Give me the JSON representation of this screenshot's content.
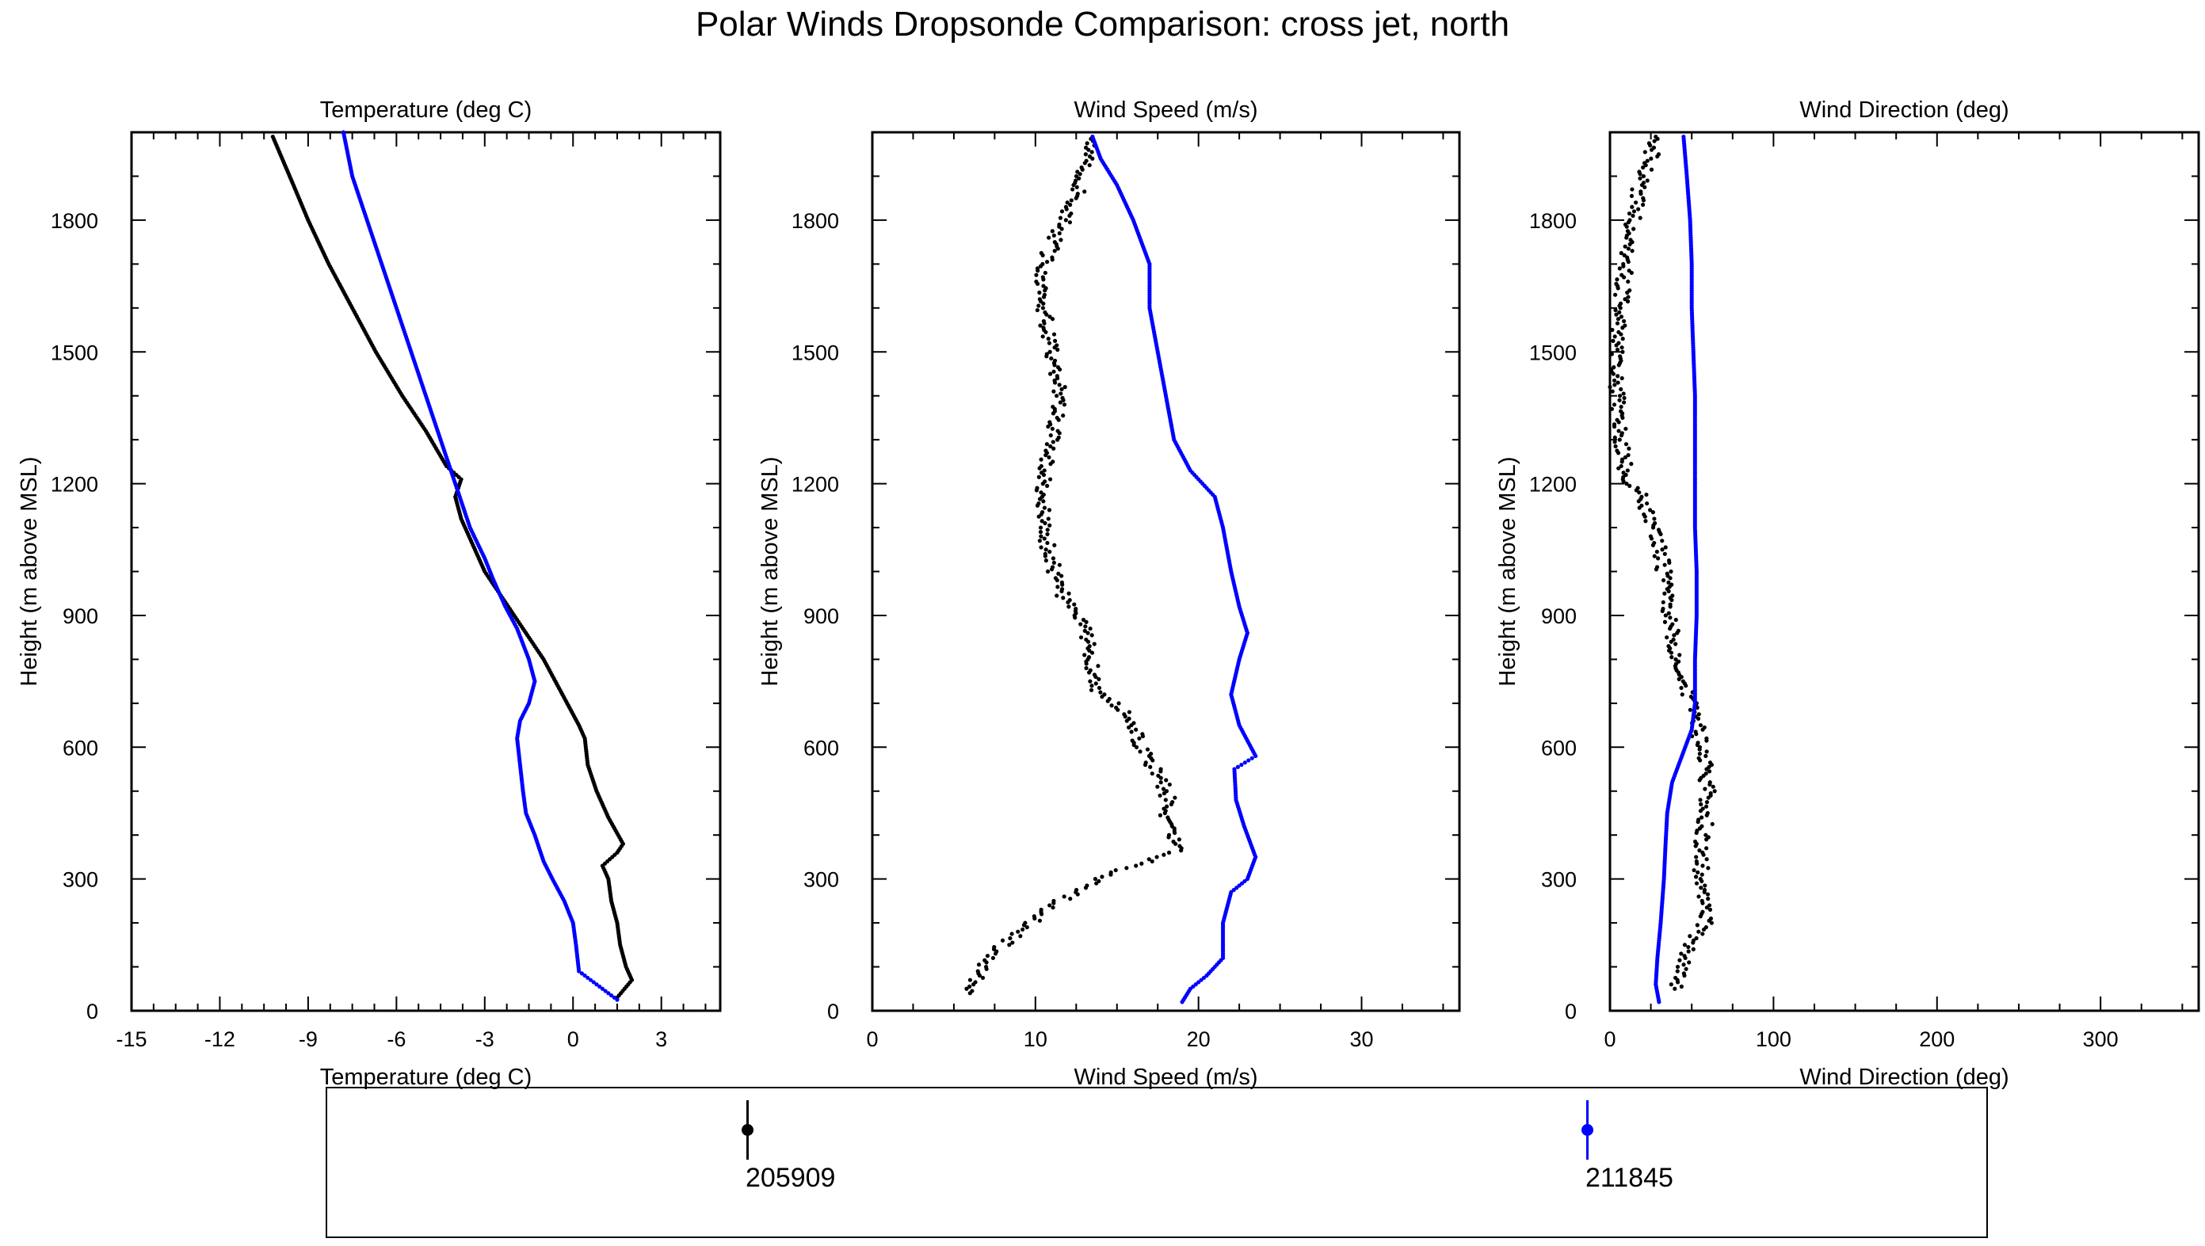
{
  "figure_title": "Polar Winds Dropsonde Comparison: cross jet, north",
  "colors": {
    "series_205909": "#000000",
    "series_211845": "#0000ff",
    "axes": "#000000"
  },
  "legend": [
    {
      "label": "205909",
      "color": "#000000"
    },
    {
      "label": "211845",
      "color": "#0000ff"
    }
  ],
  "chart_data": [
    {
      "type": "scatter",
      "title": "Temperature (deg C)",
      "xlabel": "Temperature (deg C)",
      "ylabel": "Height (m above MSL)",
      "xlim": [
        -15,
        5
      ],
      "ylim": [
        0,
        2000
      ],
      "xticks": [
        -15,
        -12,
        -9,
        -6,
        -3,
        0,
        3
      ],
      "yticks": [
        0,
        300,
        600,
        900,
        1200,
        1500,
        1800
      ],
      "grid": false,
      "series": [
        {
          "name": "205909",
          "color": "#000000",
          "points": [
            [
              1.5,
              30
            ],
            [
              2.0,
              70
            ],
            [
              1.8,
              100
            ],
            [
              1.6,
              150
            ],
            [
              1.5,
              200
            ],
            [
              1.3,
              250
            ],
            [
              1.2,
              300
            ],
            [
              1.0,
              330
            ],
            [
              1.5,
              360
            ],
            [
              1.7,
              380
            ],
            [
              1.2,
              440
            ],
            [
              0.8,
              500
            ],
            [
              0.5,
              560
            ],
            [
              0.4,
              620
            ],
            [
              0.2,
              650
            ],
            [
              -0.2,
              700
            ],
            [
              -0.6,
              750
            ],
            [
              -1.0,
              800
            ],
            [
              -1.5,
              850
            ],
            [
              -2.0,
              900
            ],
            [
              -2.5,
              950
            ],
            [
              -3.0,
              1000
            ],
            [
              -3.4,
              1060
            ],
            [
              -3.8,
              1120
            ],
            [
              -4.0,
              1170
            ],
            [
              -3.8,
              1210
            ],
            [
              -4.3,
              1240
            ],
            [
              -5.0,
              1320
            ],
            [
              -5.8,
              1400
            ],
            [
              -6.7,
              1500
            ],
            [
              -7.5,
              1600
            ],
            [
              -8.3,
              1700
            ],
            [
              -9.0,
              1800
            ],
            [
              -9.5,
              1880
            ],
            [
              -10.2,
              1990
            ]
          ]
        },
        {
          "name": "211845",
          "color": "#0000ff",
          "points": [
            [
              1.5,
              25
            ],
            [
              0.8,
              60
            ],
            [
              0.2,
              90
            ],
            [
              0.1,
              150
            ],
            [
              0.0,
              200
            ],
            [
              -0.3,
              250
            ],
            [
              -0.7,
              300
            ],
            [
              -1.0,
              340
            ],
            [
              -1.3,
              400
            ],
            [
              -1.6,
              450
            ],
            [
              -1.7,
              500
            ],
            [
              -1.8,
              560
            ],
            [
              -1.9,
              620
            ],
            [
              -1.8,
              660
            ],
            [
              -1.5,
              700
            ],
            [
              -1.3,
              750
            ],
            [
              -1.5,
              800
            ],
            [
              -1.9,
              870
            ],
            [
              -2.3,
              920
            ],
            [
              -2.7,
              980
            ],
            [
              -3.0,
              1030
            ],
            [
              -3.5,
              1100
            ],
            [
              -4.0,
              1200
            ],
            [
              -4.5,
              1300
            ],
            [
              -5.0,
              1400
            ],
            [
              -5.5,
              1500
            ],
            [
              -6.0,
              1600
            ],
            [
              -6.5,
              1700
            ],
            [
              -7.0,
              1800
            ],
            [
              -7.5,
              1900
            ],
            [
              -7.8,
              2000
            ]
          ]
        }
      ]
    },
    {
      "type": "scatter",
      "title": "Wind Speed (m/s)",
      "xlabel": "Wind Speed (m/s)",
      "ylabel": "Height (m above MSL)",
      "xlim": [
        0,
        36
      ],
      "ylim": [
        0,
        2000
      ],
      "xticks": [
        0,
        10,
        20,
        30
      ],
      "yticks": [
        0,
        300,
        600,
        900,
        1200,
        1500,
        1800
      ],
      "grid": false,
      "series": [
        {
          "name": "205909",
          "color": "#000000",
          "points": [
            [
              6.0,
              40
            ],
            [
              6.5,
              80
            ],
            [
              7.0,
              110
            ],
            [
              8.0,
              150
            ],
            [
              9.0,
              180
            ],
            [
              10.0,
              210
            ],
            [
              11.0,
              240
            ],
            [
              12.5,
              270
            ],
            [
              14.0,
              300
            ],
            [
              16.0,
              330
            ],
            [
              19.0,
              370
            ],
            [
              18.0,
              420
            ],
            [
              18.2,
              480
            ],
            [
              17.5,
              540
            ],
            [
              16.5,
              600
            ],
            [
              16.0,
              660
            ],
            [
              15.0,
              700
            ],
            [
              13.5,
              740
            ],
            [
              13.5,
              800
            ],
            [
              13.0,
              870
            ],
            [
              12.0,
              920
            ],
            [
              11.5,
              960
            ],
            [
              11.0,
              1020
            ],
            [
              10.5,
              1100
            ],
            [
              10.5,
              1200
            ],
            [
              11.0,
              1300
            ],
            [
              11.5,
              1400
            ],
            [
              11.0,
              1500
            ],
            [
              10.5,
              1600
            ],
            [
              10.5,
              1700
            ],
            [
              11.5,
              1780
            ],
            [
              12.5,
              1850
            ],
            [
              13.0,
              1920
            ],
            [
              13.5,
              1990
            ]
          ]
        },
        {
          "name": "211845",
          "color": "#0000ff",
          "points": [
            [
              19.0,
              20
            ],
            [
              19.5,
              50
            ],
            [
              20.5,
              80
            ],
            [
              21.5,
              120
            ],
            [
              21.5,
              200
            ],
            [
              22.0,
              270
            ],
            [
              23.0,
              300
            ],
            [
              23.5,
              350
            ],
            [
              22.8,
              420
            ],
            [
              22.3,
              480
            ],
            [
              22.2,
              550
            ],
            [
              23.5,
              580
            ],
            [
              22.5,
              650
            ],
            [
              22.0,
              720
            ],
            [
              22.5,
              800
            ],
            [
              23.0,
              860
            ],
            [
              22.5,
              920
            ],
            [
              22.0,
              1000
            ],
            [
              21.5,
              1100
            ],
            [
              21.0,
              1170
            ],
            [
              19.5,
              1230
            ],
            [
              18.5,
              1300
            ],
            [
              18.0,
              1400
            ],
            [
              17.5,
              1500
            ],
            [
              17.0,
              1600
            ],
            [
              17.0,
              1700
            ],
            [
              16.0,
              1800
            ],
            [
              15.0,
              1880
            ],
            [
              14.0,
              1940
            ],
            [
              13.5,
              1990
            ]
          ]
        }
      ]
    },
    {
      "type": "scatter",
      "title": "Wind Direction (deg)",
      "xlabel": "Wind Direction (deg)",
      "ylabel": "Height (m above MSL)",
      "xlim": [
        0,
        360
      ],
      "ylim": [
        0,
        2000
      ],
      "xticks": [
        0,
        100,
        200,
        300
      ],
      "yticks": [
        0,
        300,
        600,
        900,
        1200,
        1500,
        1800
      ],
      "grid": false,
      "series": [
        {
          "name": "205909",
          "color": "#000000",
          "points": [
            [
              40,
              50
            ],
            [
              45,
              100
            ],
            [
              50,
              150
            ],
            [
              58,
              200
            ],
            [
              57,
              280
            ],
            [
              55,
              350
            ],
            [
              58,
              420
            ],
            [
              60,
              500
            ],
            [
              58,
              560
            ],
            [
              55,
              620
            ],
            [
              50,
              700
            ],
            [
              45,
              760
            ],
            [
              40,
              820
            ],
            [
              37,
              880
            ],
            [
              35,
              940
            ],
            [
              33,
              1000
            ],
            [
              30,
              1060
            ],
            [
              25,
              1120
            ],
            [
              20,
              1170
            ],
            [
              12,
              1200
            ],
            [
              8,
              1260
            ],
            [
              5,
              1350
            ],
            [
              4,
              1450
            ],
            [
              5,
              1550
            ],
            [
              8,
              1650
            ],
            [
              12,
              1750
            ],
            [
              15,
              1820
            ],
            [
              18,
              1880
            ],
            [
              25,
              1940
            ],
            [
              28,
              1990
            ]
          ]
        },
        {
          "name": "211845",
          "color": "#0000ff",
          "points": [
            [
              30,
              20
            ],
            [
              28,
              60
            ],
            [
              29,
              120
            ],
            [
              31,
              200
            ],
            [
              33,
              300
            ],
            [
              34,
              380
            ],
            [
              35,
              450
            ],
            [
              38,
              520
            ],
            [
              44,
              580
            ],
            [
              50,
              640
            ],
            [
              52,
              700
            ],
            [
              52,
              800
            ],
            [
              53,
              900
            ],
            [
              53,
              1000
            ],
            [
              52,
              1100
            ],
            [
              52,
              1200
            ],
            [
              52,
              1300
            ],
            [
              52,
              1400
            ],
            [
              51,
              1500
            ],
            [
              50,
              1600
            ],
            [
              50,
              1700
            ],
            [
              49,
              1800
            ],
            [
              47,
              1900
            ],
            [
              45,
              1990
            ]
          ]
        }
      ]
    }
  ]
}
